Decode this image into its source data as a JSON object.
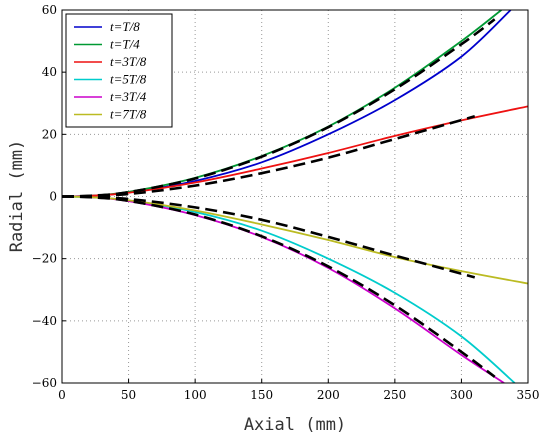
{
  "chart_data": {
    "type": "line",
    "xlabel": "Axial (mm)",
    "ylabel": "Radial (mm)",
    "xlim": [
      0,
      350
    ],
    "ylim": [
      -60,
      60
    ],
    "xticks": [
      "0",
      "50",
      "100",
      "150",
      "200",
      "250",
      "300",
      "350"
    ],
    "yticks": [
      "60",
      "40",
      "20",
      "0",
      "−20",
      "−40",
      "−60"
    ],
    "grid": "dotted",
    "legend_position": "top-left",
    "series": [
      {
        "name": "t=T/8",
        "color": "#0000cc",
        "style": "solid",
        "x": [
          0,
          20,
          50,
          100,
          150,
          200,
          250,
          300,
          337
        ],
        "y": [
          0,
          0.2,
          1.3,
          5,
          11,
          20,
          31,
          45,
          60
        ]
      },
      {
        "name": "t=T/4",
        "color": "#009933",
        "style": "solid",
        "x": [
          0,
          20,
          50,
          100,
          150,
          200,
          250,
          300,
          330
        ],
        "y": [
          0,
          0.2,
          1.5,
          6,
          13,
          22.5,
          35,
          50,
          60
        ]
      },
      {
        "name": "t=3T/8",
        "color": "#ee1111",
        "style": "solid",
        "x": [
          0,
          20,
          50,
          100,
          150,
          200,
          250,
          300,
          350
        ],
        "y": [
          0,
          0.2,
          1.2,
          4.5,
          9,
          14,
          19.5,
          24.5,
          29
        ]
      },
      {
        "name": "t=5T/8",
        "color": "#00cccc",
        "style": "solid",
        "x": [
          0,
          20,
          50,
          100,
          150,
          200,
          250,
          300,
          340
        ],
        "y": [
          0,
          -0.2,
          -1.3,
          -5,
          -11,
          -20,
          -31,
          -45,
          -60
        ]
      },
      {
        "name": "t=3T/4",
        "color": "#cc00cc",
        "style": "solid",
        "x": [
          0,
          20,
          50,
          100,
          150,
          200,
          250,
          300,
          332
        ],
        "y": [
          0,
          -0.2,
          -1.5,
          -6,
          -13,
          -23,
          -36,
          -51,
          -60
        ]
      },
      {
        "name": "t=7T/8",
        "color": "#bbbb22",
        "style": "solid",
        "x": [
          0,
          20,
          50,
          100,
          150,
          200,
          250,
          300,
          350
        ],
        "y": [
          0,
          -0.2,
          -1.2,
          -4.5,
          -9,
          -14,
          -19.5,
          -24,
          -28
        ]
      },
      {
        "name": "",
        "color": "#000000",
        "style": "dashed",
        "x": [
          0,
          20,
          50,
          100,
          150,
          200,
          250,
          300,
          325
        ],
        "y": [
          0,
          0.2,
          1.4,
          5.8,
          12.8,
          22.3,
          34.5,
          49,
          57
        ]
      },
      {
        "name": "",
        "color": "#000000",
        "style": "dashed",
        "x": [
          0,
          20,
          50,
          100,
          150,
          200,
          250,
          310
        ],
        "y": [
          0,
          0.2,
          0.8,
          3.5,
          7.5,
          12.5,
          18.5,
          25.8
        ]
      },
      {
        "name": "",
        "color": "#000000",
        "style": "dashed",
        "x": [
          0,
          20,
          50,
          100,
          150,
          200,
          250,
          310
        ],
        "y": [
          0,
          -0.2,
          -0.8,
          -3.5,
          -7.5,
          -13,
          -19,
          -26
        ]
      },
      {
        "name": "",
        "color": "#000000",
        "style": "dashed",
        "x": [
          0,
          20,
          50,
          100,
          150,
          200,
          250,
          300,
          325
        ],
        "y": [
          0,
          -0.2,
          -1.4,
          -5.8,
          -12.8,
          -22.5,
          -35,
          -50,
          -58
        ]
      }
    ]
  }
}
